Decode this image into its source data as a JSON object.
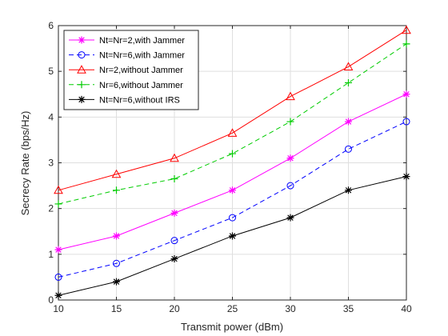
{
  "chart_data": {
    "type": "line",
    "title": "",
    "xlabel": "Transmit power (dBm)",
    "ylabel": "Secrecy Rate (bps/Hz)",
    "xlim": [
      10,
      40
    ],
    "ylim": [
      0,
      6
    ],
    "xticks": [
      10,
      15,
      20,
      25,
      30,
      35,
      40
    ],
    "yticks": [
      0,
      1,
      2,
      3,
      4,
      5,
      6
    ],
    "grid": true,
    "legend_position": "top-left",
    "x": [
      10,
      15,
      20,
      25,
      30,
      35,
      40
    ],
    "series": [
      {
        "name": "Nt=Nr=2,with Jammer",
        "color": "#ff00ff",
        "dash": "solid",
        "marker": "asterisk",
        "values": [
          1.1,
          1.4,
          1.9,
          2.4,
          3.1,
          3.9,
          4.5
        ]
      },
      {
        "name": "Nt=Nr=6,with Jammer",
        "color": "#0000ff",
        "dash": "dashed",
        "marker": "circle",
        "values": [
          0.5,
          0.8,
          1.3,
          1.8,
          2.5,
          3.3,
          3.9
        ]
      },
      {
        "name": "Nr=2,without Jammer",
        "color": "#ff0000",
        "dash": "solid",
        "marker": "triangle",
        "values": [
          2.4,
          2.75,
          3.1,
          3.65,
          4.45,
          5.1,
          5.9
        ]
      },
      {
        "name": "Nr=6,without Jammer",
        "color": "#00cc00",
        "dash": "dashed",
        "marker": "plus",
        "values": [
          2.1,
          2.4,
          2.65,
          3.2,
          3.9,
          4.75,
          5.6
        ]
      },
      {
        "name": "Nt=Nr=6,without IRS",
        "color": "#000000",
        "dash": "solid",
        "marker": "asterisk",
        "values": [
          0.1,
          0.4,
          0.9,
          1.4,
          1.8,
          2.4,
          2.7
        ]
      }
    ]
  }
}
